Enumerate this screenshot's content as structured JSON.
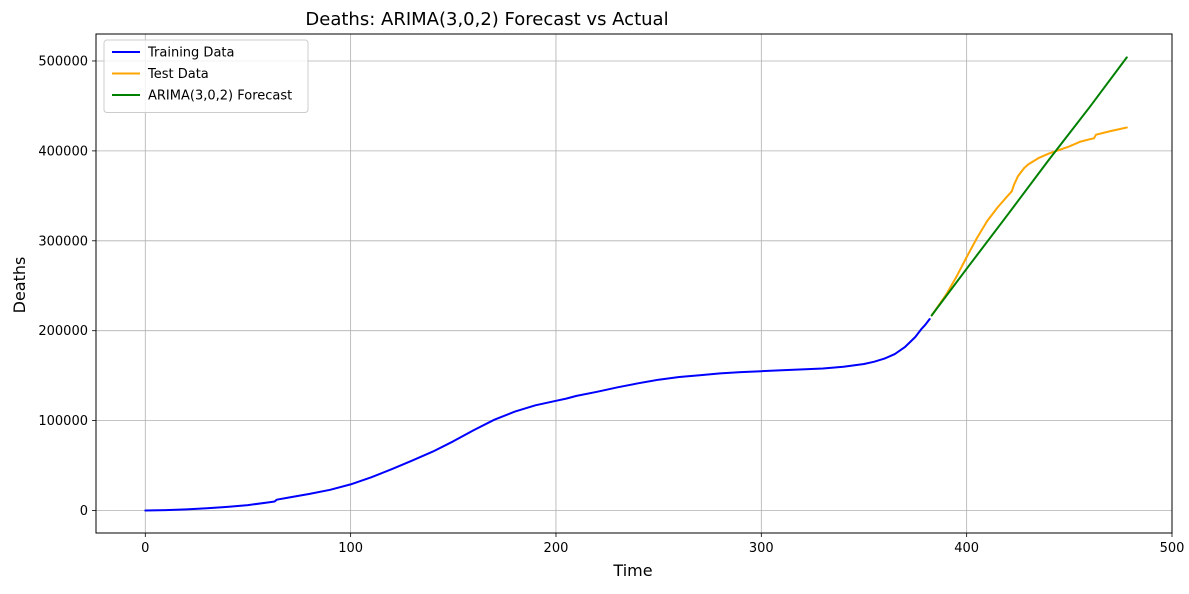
{
  "chart_data": {
    "type": "line",
    "title": "Deaths: ARIMA(3,0,2) Forecast vs Actual",
    "xlabel": "Time",
    "ylabel": "Deaths",
    "xlim": [
      -24,
      500
    ],
    "ylim": [
      -25000,
      530000
    ],
    "xticks": [
      0,
      100,
      200,
      300,
      400,
      500
    ],
    "yticks": [
      0,
      100000,
      200000,
      300000,
      400000,
      500000
    ],
    "grid": true,
    "legend_position": "top-left",
    "series": [
      {
        "name": "Training Data",
        "color": "#0000ff",
        "x": [
          0,
          10,
          20,
          30,
          40,
          50,
          60,
          63,
          64,
          70,
          80,
          90,
          100,
          110,
          120,
          130,
          140,
          150,
          160,
          170,
          180,
          190,
          200,
          205,
          210,
          220,
          230,
          240,
          250,
          260,
          270,
          280,
          290,
          300,
          310,
          320,
          330,
          340,
          350,
          355,
          360,
          365,
          370,
          375,
          378,
          380,
          382
        ],
        "y": [
          0,
          500,
          1200,
          2500,
          4000,
          6000,
          9000,
          10000,
          12000,
          14500,
          18500,
          23000,
          29000,
          37000,
          46000,
          55500,
          65500,
          77000,
          89500,
          101000,
          110000,
          117000,
          122000,
          124500,
          127500,
          132000,
          137000,
          141500,
          145500,
          148500,
          150500,
          152500,
          154000,
          155000,
          156000,
          157000,
          158000,
          160000,
          163000,
          165500,
          169000,
          174000,
          182000,
          193000,
          202000,
          207000,
          213000
        ]
      },
      {
        "name": "Test Data",
        "color": "#ffa500",
        "x": [
          383,
          390,
          395,
          400,
          405,
          410,
          415,
          420,
          422,
          423,
          425,
          428,
          430,
          435,
          440,
          445,
          450,
          455,
          460,
          462,
          463,
          470,
          478
        ],
        "y": [
          217000,
          240000,
          260000,
          282000,
          303000,
          322000,
          337000,
          350000,
          355000,
          362000,
          372000,
          381000,
          385000,
          392000,
          397000,
          401000,
          405000,
          410000,
          413000,
          414000,
          418000,
          422000,
          426000
        ]
      },
      {
        "name": "ARIMA(3,0,2) Forecast",
        "color": "#008000",
        "x": [
          383,
          400,
          420,
          440,
          460,
          478
        ],
        "y": [
          217000,
          269000,
          329000,
          390000,
          449000,
          504000
        ]
      }
    ]
  }
}
